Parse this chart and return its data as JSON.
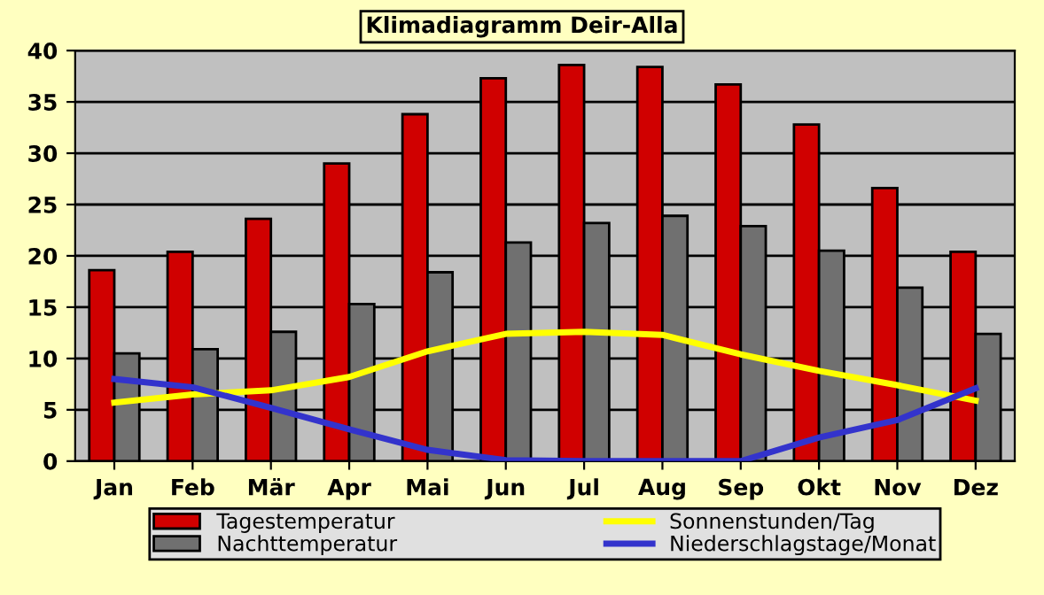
{
  "chart_data": {
    "type": "bar",
    "title": "Klimadiagramm Deir-Alla",
    "categories": [
      "Jan",
      "Feb",
      "Mär",
      "Apr",
      "Mai",
      "Jun",
      "Jul",
      "Aug",
      "Sep",
      "Okt",
      "Nov",
      "Dez"
    ],
    "series": [
      {
        "name": "Tagestemperatur",
        "color": "#d00000",
        "values": [
          18.6,
          20.4,
          23.6,
          29,
          33.8,
          37.3,
          38.6,
          38.4,
          36.7,
          32.8,
          26.6,
          20.4
        ]
      },
      {
        "name": "Nachttemperatur",
        "color": "#707070",
        "values": [
          10.5,
          10.9,
          12.6,
          15.3,
          18.4,
          21.3,
          23.2,
          23.9,
          22.9,
          20.5,
          16.9,
          12.4
        ]
      },
      {
        "name": "Sonnenstunden/Tag",
        "type": "line",
        "color": "#ffff00",
        "values": [
          5.7,
          6.5,
          6.9,
          8.2,
          10.7,
          12.4,
          12.6,
          12.3,
          10.4,
          8.8,
          7.4,
          5.9
        ]
      },
      {
        "name": "Niederschlagstage/Monat",
        "type": "line",
        "color": "#3333cc",
        "values": [
          8,
          7.2,
          5.2,
          3.1,
          1.1,
          0.1,
          0,
          0,
          0,
          2.3,
          4,
          7.1
        ]
      }
    ],
    "ylim": [
      0,
      40
    ],
    "yticks": [
      0,
      5,
      10,
      15,
      20,
      25,
      30,
      35,
      40
    ],
    "grid": "y",
    "legend": "bottom",
    "marker": "none",
    "line_style": "solid"
  }
}
